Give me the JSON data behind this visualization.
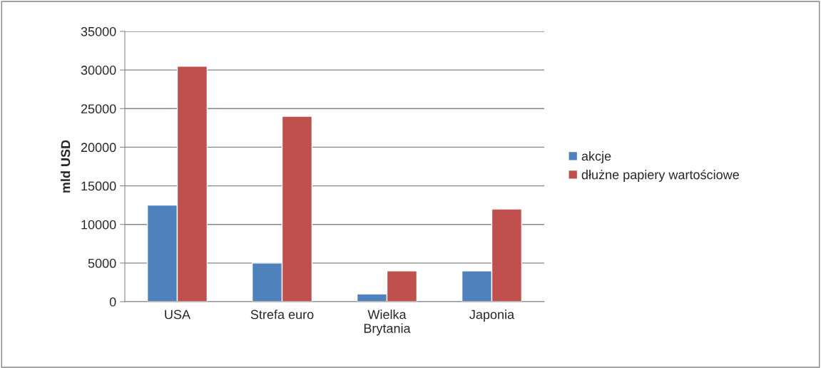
{
  "chart_data": {
    "type": "bar",
    "ylabel": "mld USD",
    "categories": [
      "USA",
      "Strefa euro",
      "Wielka\nBrytania",
      "Japonia"
    ],
    "series": [
      {
        "name": "akcje",
        "color": "#4f81bd",
        "values": [
          12500,
          5000,
          1000,
          4000
        ]
      },
      {
        "name": "dłużne papiery wartościowe",
        "color": "#c0504d",
        "values": [
          30500,
          24000,
          4000,
          12000
        ]
      }
    ],
    "ylim": [
      0,
      35000
    ],
    "yticks": [
      0,
      5000,
      10000,
      15000,
      20000,
      25000,
      30000,
      35000
    ],
    "grid": "y",
    "legend": "right"
  }
}
